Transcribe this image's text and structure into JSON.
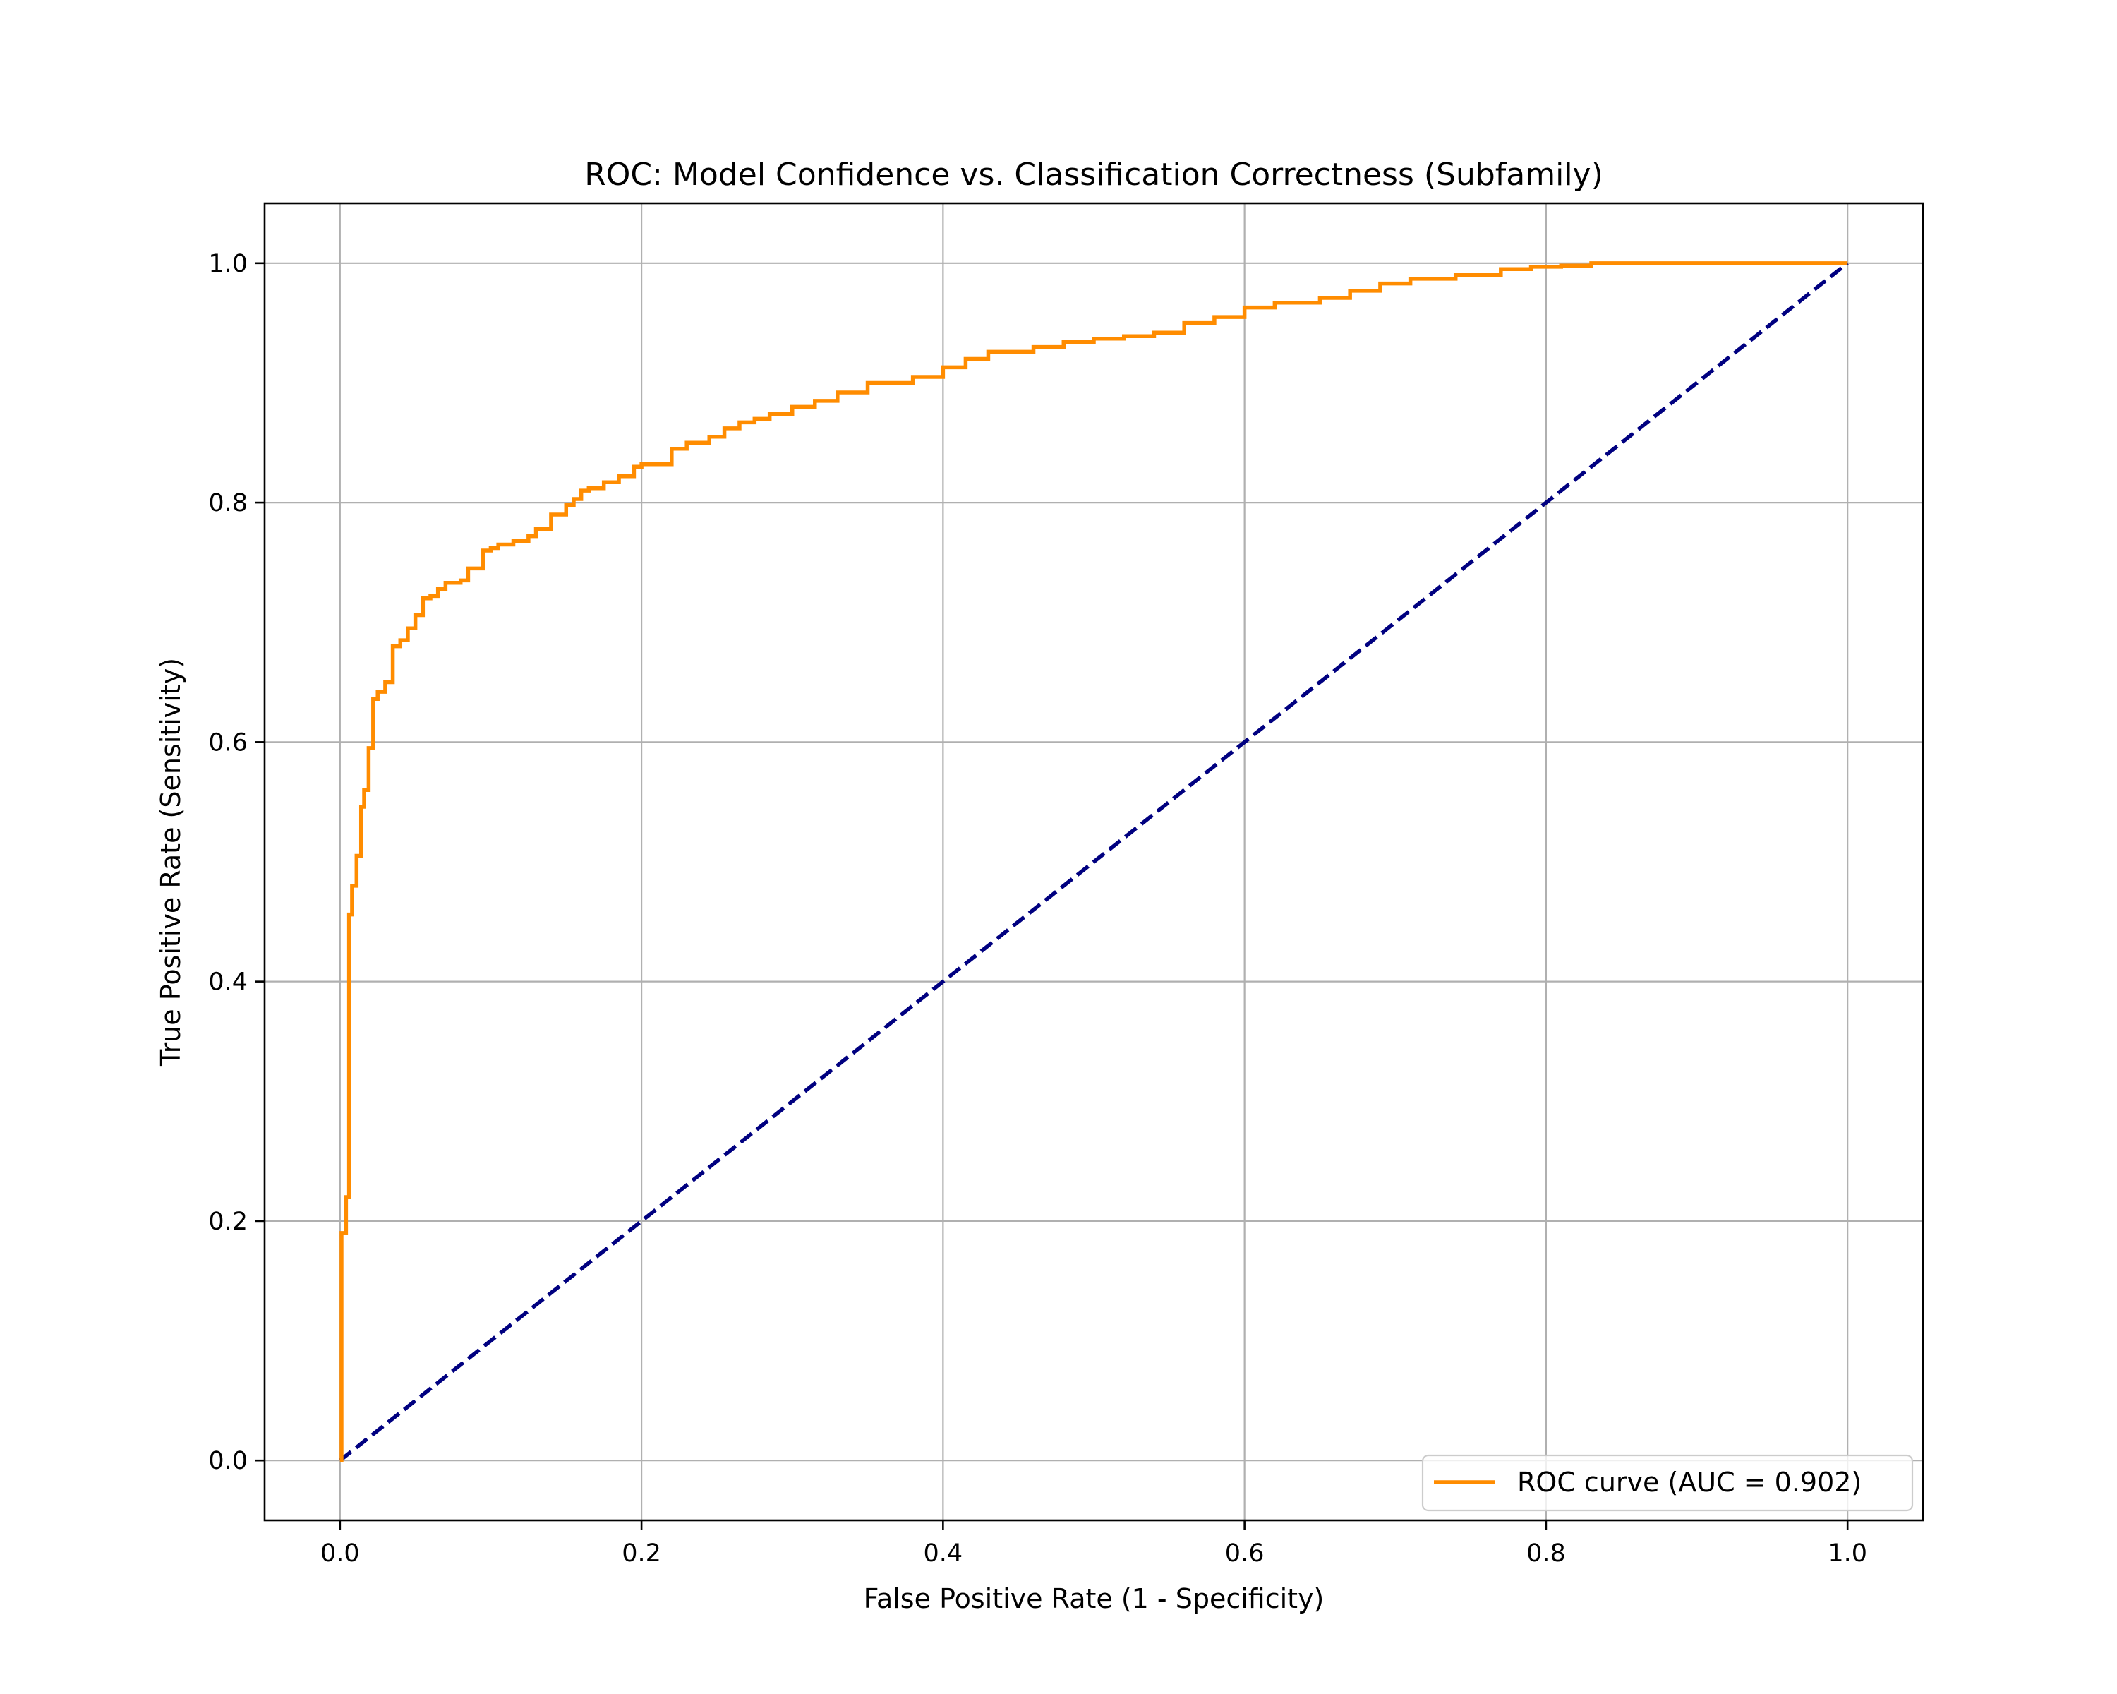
{
  "chart_data": {
    "type": "line",
    "title": "ROC: Model Confidence vs. Classification Correctness (Subfamily)",
    "xlabel": "False Positive Rate (1 - Specificity)",
    "ylabel": "True Positive Rate (Sensitivity)",
    "xlim": [
      -0.05,
      1.05
    ],
    "ylim": [
      -0.05,
      1.05
    ],
    "xticks": [
      0.0,
      0.2,
      0.4,
      0.6,
      0.8,
      1.0
    ],
    "xtick_labels": [
      "0.0",
      "0.2",
      "0.4",
      "0.6",
      "0.8",
      "1.0"
    ],
    "yticks": [
      0.0,
      0.2,
      0.4,
      0.6,
      0.8,
      1.0
    ],
    "ytick_labels": [
      "0.0",
      "0.2",
      "0.4",
      "0.6",
      "0.8",
      "1.0"
    ],
    "grid": true,
    "legend_position": "lower-right",
    "series": [
      {
        "name": "ROC curve (AUC = 0.902)",
        "color": "#ff8c00",
        "style": "solid",
        "step": true,
        "x": [
          0.0,
          0.001,
          0.004,
          0.006,
          0.008,
          0.011,
          0.014,
          0.016,
          0.019,
          0.022,
          0.025,
          0.03,
          0.035,
          0.04,
          0.045,
          0.05,
          0.055,
          0.06,
          0.065,
          0.07,
          0.08,
          0.085,
          0.095,
          0.1,
          0.105,
          0.115,
          0.125,
          0.13,
          0.14,
          0.15,
          0.155,
          0.16,
          0.165,
          0.175,
          0.185,
          0.195,
          0.2,
          0.22,
          0.23,
          0.245,
          0.255,
          0.265,
          0.275,
          0.285,
          0.3,
          0.315,
          0.33,
          0.35,
          0.38,
          0.4,
          0.415,
          0.43,
          0.46,
          0.48,
          0.5,
          0.52,
          0.54,
          0.56,
          0.58,
          0.6,
          0.62,
          0.65,
          0.67,
          0.69,
          0.71,
          0.74,
          0.77,
          0.79,
          0.81,
          0.83,
          1.0
        ],
        "y": [
          0.0,
          0.19,
          0.22,
          0.456,
          0.48,
          0.505,
          0.546,
          0.56,
          0.595,
          0.636,
          0.642,
          0.65,
          0.68,
          0.685,
          0.695,
          0.706,
          0.72,
          0.722,
          0.728,
          0.733,
          0.735,
          0.745,
          0.76,
          0.762,
          0.765,
          0.768,
          0.772,
          0.778,
          0.79,
          0.798,
          0.803,
          0.81,
          0.812,
          0.817,
          0.822,
          0.83,
          0.832,
          0.845,
          0.85,
          0.855,
          0.862,
          0.867,
          0.87,
          0.874,
          0.88,
          0.885,
          0.892,
          0.9,
          0.905,
          0.913,
          0.92,
          0.926,
          0.93,
          0.934,
          0.937,
          0.939,
          0.942,
          0.95,
          0.955,
          0.963,
          0.967,
          0.971,
          0.977,
          0.983,
          0.987,
          0.99,
          0.995,
          0.997,
          0.998,
          1.0,
          1.0
        ]
      },
      {
        "name": "",
        "color": "#000080",
        "style": "dashed",
        "step": false,
        "x": [
          0.0,
          1.0
        ],
        "y": [
          0.0,
          1.0
        ]
      }
    ]
  }
}
